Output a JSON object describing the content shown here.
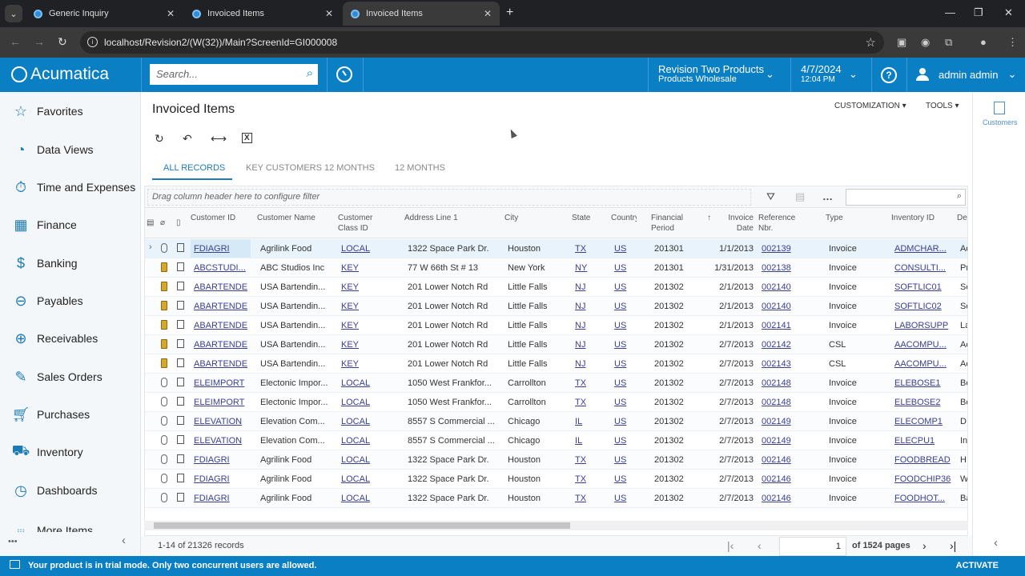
{
  "browser": {
    "tabs": [
      {
        "label": "Generic Inquiry",
        "active": false
      },
      {
        "label": "Invoiced Items",
        "active": false
      },
      {
        "label": "Invoiced Items",
        "active": true
      }
    ],
    "url": "localhost/Revision2/(W(32))/Main?ScreenId=GI000008"
  },
  "topbar": {
    "logo": "Acumatica",
    "search_placeholder": "Search...",
    "tenant": {
      "name": "Revision Two Products",
      "branch": "Products Wholesale"
    },
    "date": {
      "date": "4/7/2024",
      "time": "12:04 PM"
    },
    "user": "admin admin"
  },
  "sidebar": {
    "items": [
      {
        "label": "Favorites",
        "icon": "star-icon"
      },
      {
        "label": "Data Views",
        "icon": "pie-chart-icon"
      },
      {
        "label": "Time and Expenses",
        "icon": "stopwatch-icon"
      },
      {
        "label": "Finance",
        "icon": "calculator-icon"
      },
      {
        "label": "Banking",
        "icon": "dollar-icon"
      },
      {
        "label": "Payables",
        "icon": "minus-circle-icon"
      },
      {
        "label": "Receivables",
        "icon": "plus-circle-icon"
      },
      {
        "label": "Sales Orders",
        "icon": "edit-icon"
      },
      {
        "label": "Purchases",
        "icon": "cart-icon"
      },
      {
        "label": "Inventory",
        "icon": "truck-icon"
      },
      {
        "label": "Dashboards",
        "icon": "gauge-icon"
      },
      {
        "label": "More Items",
        "icon": "grid-dots-icon"
      }
    ]
  },
  "page": {
    "title": "Invoiced Items",
    "menu": {
      "customization": "CUSTOMIZATION",
      "tools": "TOOLS"
    },
    "tabs": [
      "ALL RECORDS",
      "KEY CUSTOMERS 12 MONTHS",
      "12 MONTHS"
    ],
    "active_tab": "ALL RECORDS"
  },
  "grid": {
    "filter_hint": "Drag column header here to configure filter",
    "columns": [
      "Customer ID",
      "Customer Name",
      "Customer Class ID",
      "Address Line 1",
      "City",
      "State",
      "Country",
      "Financial Period",
      "Invoice Date",
      "Reference Nbr.",
      "Type",
      "Inventory ID",
      "Description"
    ],
    "rows": [
      [
        "FDIAGRI",
        "Agrilink Food",
        "LOCAL",
        "1322 Space Park Dr.",
        "Houston",
        "TX",
        "US",
        "201301",
        "1/1/2013",
        "002139",
        "Invoice",
        "ADMCHAR...",
        "Ad"
      ],
      [
        "ABCSTUDI...",
        "ABC Studios Inc",
        "KEY",
        "77 W 66th St # 13",
        "New York",
        "NY",
        "US",
        "201301",
        "1/31/2013",
        "002138",
        "Invoice",
        "CONSULTI...",
        "Pr"
      ],
      [
        "ABARTENDE",
        "USA Bartendin...",
        "KEY",
        "201 Lower Notch Rd",
        "Little Falls",
        "NJ",
        "US",
        "201302",
        "2/1/2013",
        "002140",
        "Invoice",
        "SOFTLIC01",
        "So"
      ],
      [
        "ABARTENDE",
        "USA Bartendin...",
        "KEY",
        "201 Lower Notch Rd",
        "Little Falls",
        "NJ",
        "US",
        "201302",
        "2/1/2013",
        "002140",
        "Invoice",
        "SOFTLIC02",
        "So"
      ],
      [
        "ABARTENDE",
        "USA Bartendin...",
        "KEY",
        "201 Lower Notch Rd",
        "Little Falls",
        "NJ",
        "US",
        "201302",
        "2/1/2013",
        "002141",
        "Invoice",
        "LABORSUPP",
        "La"
      ],
      [
        "ABARTENDE",
        "USA Bartendin...",
        "KEY",
        "201 Lower Notch Rd",
        "Little Falls",
        "NJ",
        "US",
        "201302",
        "2/7/2013",
        "002142",
        "CSL",
        "AACOMPU...",
        "Ac"
      ],
      [
        "ABARTENDE",
        "USA Bartendin...",
        "KEY",
        "201 Lower Notch Rd",
        "Little Falls",
        "NJ",
        "US",
        "201302",
        "2/7/2013",
        "002143",
        "CSL",
        "AACOMPU...",
        "Ac"
      ],
      [
        "ELEIMPORT",
        "Electonic Impor...",
        "LOCAL",
        "1050 West Frankfor...",
        "Carrollton",
        "TX",
        "US",
        "201302",
        "2/7/2013",
        "002148",
        "Invoice",
        "ELEBOSE1",
        "Be"
      ],
      [
        "ELEIMPORT",
        "Electonic Impor...",
        "LOCAL",
        "1050 West Frankfor...",
        "Carrollton",
        "TX",
        "US",
        "201302",
        "2/7/2013",
        "002148",
        "Invoice",
        "ELEBOSE2",
        "Be"
      ],
      [
        "ELEVATION",
        "Elevation Com...",
        "LOCAL",
        "8557 S Commercial ...",
        "Chicago",
        "IL",
        "US",
        "201302",
        "2/7/2013",
        "002149",
        "Invoice",
        "ELECOMP1",
        "D"
      ],
      [
        "ELEVATION",
        "Elevation Com...",
        "LOCAL",
        "8557 S Commercial ...",
        "Chicago",
        "IL",
        "US",
        "201302",
        "2/7/2013",
        "002149",
        "Invoice",
        "ELECPU1",
        "In"
      ],
      [
        "FDIAGRI",
        "Agrilink Food",
        "LOCAL",
        "1322 Space Park Dr.",
        "Houston",
        "TX",
        "US",
        "201302",
        "2/7/2013",
        "002146",
        "Invoice",
        "FOODBREAD",
        "H"
      ],
      [
        "FDIAGRI",
        "Agrilink Food",
        "LOCAL",
        "1322 Space Park Dr.",
        "Houston",
        "TX",
        "US",
        "201302",
        "2/7/2013",
        "002146",
        "Invoice",
        "FOODCHIP36",
        "W"
      ],
      [
        "FDIAGRI",
        "Agrilink Food",
        "LOCAL",
        "1322 Space Park Dr.",
        "Houston",
        "TX",
        "US",
        "201302",
        "2/7/2013",
        "002146",
        "Invoice",
        "FOODHOT...",
        "Ba"
      ]
    ],
    "row_notes": [
      false,
      true,
      true,
      true,
      true,
      true,
      true,
      false,
      false,
      false,
      false,
      false,
      false,
      false
    ],
    "records_label": "1-14 of 21326 records",
    "page_value": "1",
    "pages_label": "of 1524 pages"
  },
  "right_panel": {
    "label": "Customers"
  },
  "trial": {
    "message": "Your product is in trial mode. Only two concurrent users are allowed.",
    "action": "ACTIVATE"
  },
  "colors": {
    "brand": "#0a7fc4",
    "link": "#3b3e8f",
    "accent": "#1f7bb3"
  }
}
